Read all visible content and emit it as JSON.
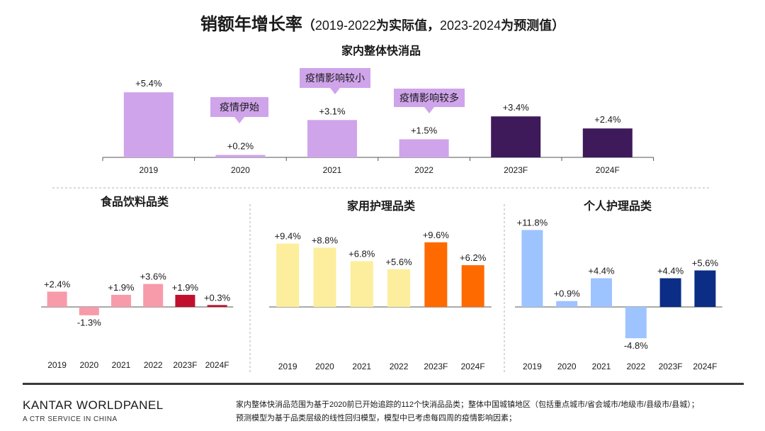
{
  "header": {
    "title": "销额年增长率",
    "open_paren": "（",
    "years_actual": "2019-2022",
    "label_actual": "为实际值，",
    "years_forecast": "2023-2024",
    "label_forecast": "为预测值）"
  },
  "colors": {
    "total_actual": "#cfa4ea",
    "total_forecast": "#3e1a5b",
    "food_actual": "#f79aaa",
    "food_forecast": "#c0102e",
    "home_actual": "#fcee9c",
    "home_forecast": "#ff6a00",
    "personal_actual": "#9ec4ff",
    "personal_forecast": "#0b2d86"
  },
  "chart_data": [
    {
      "type": "bar",
      "title": "家内整体快消品",
      "categories": [
        "2019",
        "2020",
        "2021",
        "2022",
        "2023F",
        "2024F"
      ],
      "values": [
        5.4,
        0.2,
        3.1,
        1.5,
        3.4,
        2.4
      ],
      "labels": [
        "+5.4%",
        "+0.2%",
        "+3.1%",
        "+1.5%",
        "+3.4%",
        "+2.4%"
      ],
      "forecast_from_index": 4,
      "annotations": [
        {
          "category": "2020",
          "text": "疫情伊始"
        },
        {
          "category": "2021",
          "text": "疫情影响较小"
        },
        {
          "category": "2022",
          "text": "疫情影响较多"
        }
      ]
    },
    {
      "type": "bar",
      "title": "食品饮料品类",
      "categories": [
        "2019",
        "2020",
        "2021",
        "2022",
        "2023F",
        "2024F"
      ],
      "values": [
        2.4,
        -1.3,
        1.9,
        3.6,
        1.9,
        0.3
      ],
      "labels": [
        "+2.4%",
        "-1.3%",
        "+1.9%",
        "+3.6%",
        "+1.9%",
        "+0.3%"
      ],
      "forecast_from_index": 4
    },
    {
      "type": "bar",
      "title": "家用护理品类",
      "categories": [
        "2019",
        "2020",
        "2021",
        "2022",
        "2023F",
        "2024F"
      ],
      "values": [
        9.4,
        8.8,
        6.8,
        5.6,
        9.6,
        6.2
      ],
      "labels": [
        "+9.4%",
        "+8.8%",
        "+6.8%",
        "+5.6%",
        "+9.6%",
        "+6.2%"
      ],
      "forecast_from_index": 4
    },
    {
      "type": "bar",
      "title": "个人护理品类",
      "categories": [
        "2019",
        "2020",
        "2021",
        "2022",
        "2023F",
        "2024F"
      ],
      "values": [
        11.8,
        0.9,
        4.4,
        -4.8,
        4.4,
        5.6
      ],
      "labels": [
        "+11.8%",
        "+0.9%",
        "+4.4%",
        "-4.8%",
        "+4.4%",
        "+5.6%"
      ],
      "forecast_from_index": 4
    }
  ],
  "footer": {
    "logo_a": "K",
    "logo_b": "ANTAR WORLDPANEL",
    "logo_sub": "A CTR SERVICE IN CHINA",
    "note_line1": "家内整体快消品范围为基于2020前已开始追踪的112个快消品品类；整体中国城镇地区（包括重点城市/省会城市/地级市/县级市/县城）；",
    "note_line2": "预测模型为基于品类层级的线性回归模型，模型中已考虑每四周的疫情影响因素；"
  }
}
